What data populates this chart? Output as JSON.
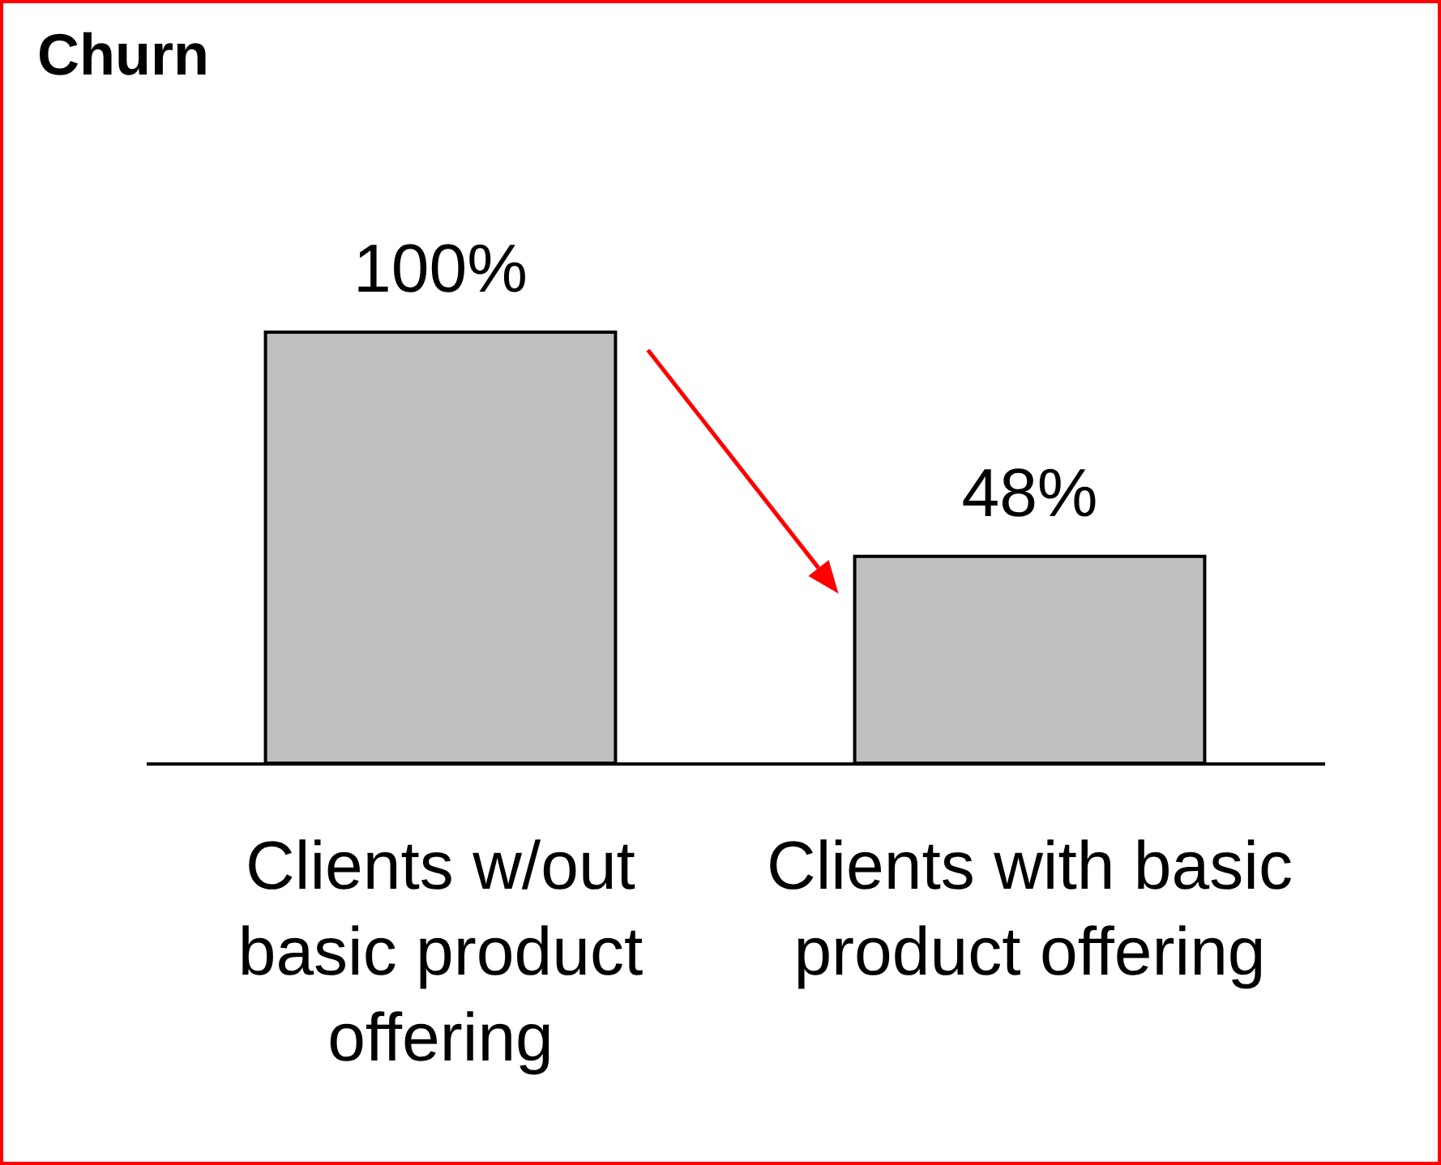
{
  "chart_data": {
    "type": "bar",
    "title": "Churn",
    "categories": [
      "Clients w/out basic product offering",
      "Clients with basic product offering"
    ],
    "values": [
      100,
      48
    ],
    "color": "#c0c0c0",
    "value_labels": [
      "100%",
      "48%"
    ],
    "tick_labels": "x"
  }
}
